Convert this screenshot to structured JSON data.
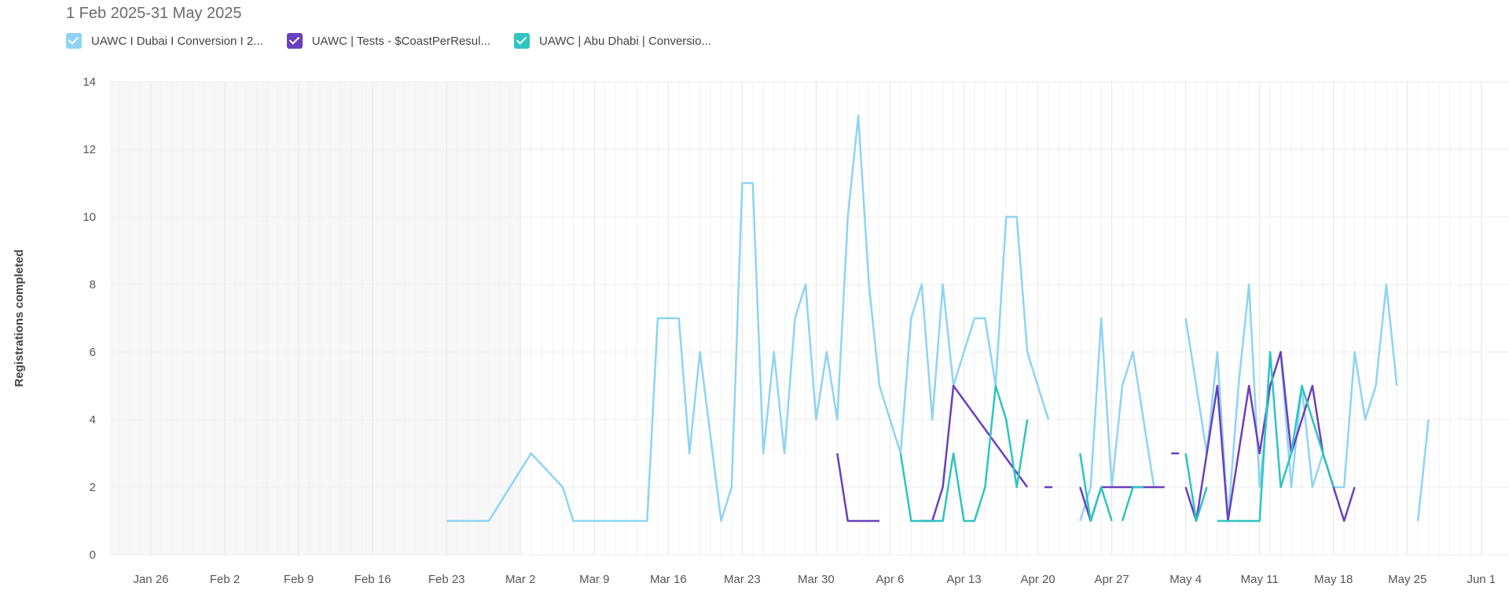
{
  "header": {
    "date_range": "1 Feb 2025-31 May 2025"
  },
  "chart_data": {
    "type": "line",
    "title": "",
    "xlabel": "",
    "ylabel": "Registrations completed",
    "ylim": [
      0,
      14
    ],
    "yticks": [
      0,
      2,
      4,
      6,
      8,
      10,
      12,
      14
    ],
    "xticks": [
      "Jan 26",
      "Feb 2",
      "Feb 9",
      "Feb 16",
      "Feb 23",
      "Mar 2",
      "Mar 9",
      "Mar 16",
      "Mar 23",
      "Mar 30",
      "Apr 6",
      "Apr 13",
      "Apr 20",
      "Apr 27",
      "May 4",
      "May 11",
      "May 18",
      "May 25",
      "Jun 1"
    ],
    "grid": true,
    "legend": "top-left",
    "series": [
      {
        "name": "UAWC I Dubai I Conversion I 2...",
        "color": "#8fd3f4",
        "points": [
          [
            28,
            1
          ],
          [
            29,
            1
          ],
          [
            30,
            1
          ],
          [
            32,
            1
          ],
          [
            36,
            3
          ],
          [
            39,
            2
          ],
          [
            40,
            1
          ],
          [
            47,
            1
          ],
          [
            48,
            7
          ],
          [
            49,
            7
          ],
          [
            50,
            7
          ],
          [
            51,
            3
          ],
          [
            52,
            6
          ],
          [
            54,
            1
          ],
          [
            55,
            2
          ],
          [
            56,
            11
          ],
          [
            57,
            11
          ],
          [
            58,
            3
          ],
          [
            59,
            6
          ],
          [
            60,
            3
          ],
          [
            61,
            7
          ],
          [
            62,
            8
          ],
          [
            63,
            4
          ],
          [
            64,
            6
          ],
          [
            65,
            4
          ],
          [
            66,
            10
          ],
          [
            67,
            13
          ],
          [
            68,
            8
          ],
          [
            69,
            5
          ],
          [
            70,
            4
          ],
          [
            71,
            3
          ],
          [
            72,
            7
          ],
          [
            73,
            8
          ],
          [
            74,
            4
          ],
          [
            75,
            8
          ],
          [
            76,
            5
          ],
          [
            77,
            6
          ],
          [
            78,
            7
          ],
          [
            79,
            7
          ],
          [
            80,
            5
          ],
          [
            81,
            10
          ],
          [
            82,
            10
          ],
          [
            83,
            6
          ],
          [
            84,
            5
          ],
          [
            85,
            4
          ],
          [
            null,
            null
          ],
          [
            88,
            1
          ],
          [
            89,
            2
          ],
          [
            90,
            7
          ],
          [
            91,
            2
          ],
          [
            92,
            5
          ],
          [
            93,
            6
          ],
          [
            94,
            4
          ],
          [
            95,
            2
          ],
          [
            null,
            null
          ],
          [
            98,
            7
          ],
          [
            99,
            5
          ],
          [
            100,
            3
          ],
          [
            101,
            6
          ],
          [
            102,
            1
          ],
          [
            103,
            5
          ],
          [
            104,
            8
          ],
          [
            105,
            2
          ],
          [
            106,
            5
          ],
          [
            107,
            6
          ],
          [
            108,
            2
          ],
          [
            109,
            5
          ],
          [
            110,
            2
          ],
          [
            111,
            3
          ],
          [
            112,
            2
          ],
          [
            113,
            2
          ],
          [
            114,
            6
          ],
          [
            115,
            4
          ],
          [
            116,
            5
          ],
          [
            117,
            8
          ],
          [
            118,
            5
          ],
          [
            null,
            null
          ],
          [
            120,
            1
          ],
          [
            121,
            4
          ]
        ]
      },
      {
        "name": "UAWC | Tests - $CoastPerResul...",
        "color": "#6a3fc1",
        "points": [
          [
            65,
            3
          ],
          [
            66,
            1
          ],
          [
            67,
            1
          ],
          [
            68,
            1
          ],
          [
            69,
            1
          ],
          [
            null,
            null
          ],
          [
            73,
            1
          ],
          [
            74,
            1
          ],
          [
            75,
            2
          ],
          [
            76,
            5
          ],
          [
            83,
            2
          ],
          [
            null,
            null
          ],
          [
            85,
            2
          ],
          [
            null,
            null
          ],
          [
            88,
            2
          ],
          [
            89,
            1
          ],
          [
            90,
            2
          ],
          [
            91,
            2
          ],
          [
            92,
            2
          ],
          [
            93,
            2
          ],
          [
            94,
            2
          ],
          [
            95,
            2
          ],
          [
            96,
            2
          ],
          [
            null,
            null
          ],
          [
            97,
            3
          ],
          [
            null,
            null
          ],
          [
            98,
            2
          ],
          [
            99,
            1
          ],
          [
            100,
            3
          ],
          [
            101,
            5
          ],
          [
            102,
            1
          ],
          [
            103,
            3
          ],
          [
            104,
            5
          ],
          [
            105,
            3
          ],
          [
            106,
            5
          ],
          [
            107,
            6
          ],
          [
            108,
            3
          ],
          [
            109,
            4
          ],
          [
            110,
            5
          ],
          [
            111,
            3
          ],
          [
            112,
            2
          ],
          [
            113,
            1
          ],
          [
            114,
            2
          ]
        ]
      },
      {
        "name": "UAWC | Abu Dhabi | Conversio...",
        "color": "#2ec4c0",
        "points": [
          [
            71,
            3
          ],
          [
            72,
            1
          ],
          [
            73,
            1
          ],
          [
            74,
            1
          ],
          [
            75,
            1
          ],
          [
            76,
            3
          ],
          [
            77,
            1
          ],
          [
            78,
            1
          ],
          [
            79,
            2
          ],
          [
            80,
            5
          ],
          [
            81,
            4
          ],
          [
            82,
            2
          ],
          [
            83,
            4
          ],
          [
            null,
            null
          ],
          [
            88,
            3
          ],
          [
            89,
            1
          ],
          [
            90,
            2
          ],
          [
            91,
            1
          ],
          [
            null,
            null
          ],
          [
            92,
            1
          ],
          [
            93,
            2
          ],
          [
            94,
            2
          ],
          [
            null,
            null
          ],
          [
            98,
            3
          ],
          [
            99,
            1
          ],
          [
            100,
            2
          ],
          [
            null,
            null
          ],
          [
            101,
            1
          ],
          [
            102,
            1
          ],
          [
            103,
            1
          ],
          [
            104,
            1
          ],
          [
            105,
            1
          ],
          [
            106,
            6
          ],
          [
            107,
            2
          ],
          [
            108,
            3
          ],
          [
            109,
            5
          ],
          [
            110,
            4
          ],
          [
            111,
            3
          ],
          [
            112,
            2
          ]
        ]
      }
    ]
  }
}
